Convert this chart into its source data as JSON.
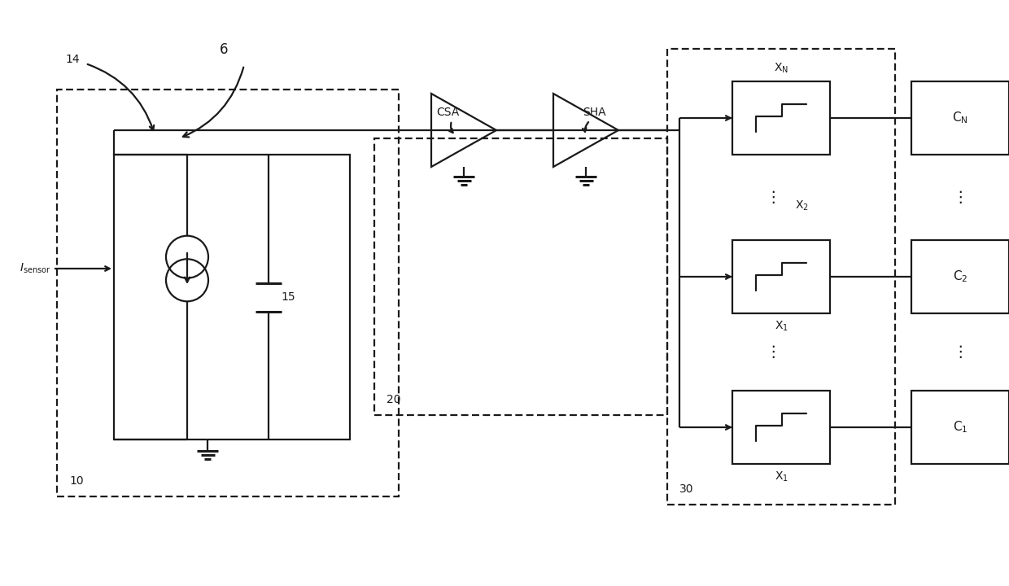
{
  "bg_color": "#ffffff",
  "line_color": "#1a1a1a",
  "lw": 1.6,
  "lw_thick": 2.2,
  "fig_w": 12.4,
  "fig_h": 7.2
}
